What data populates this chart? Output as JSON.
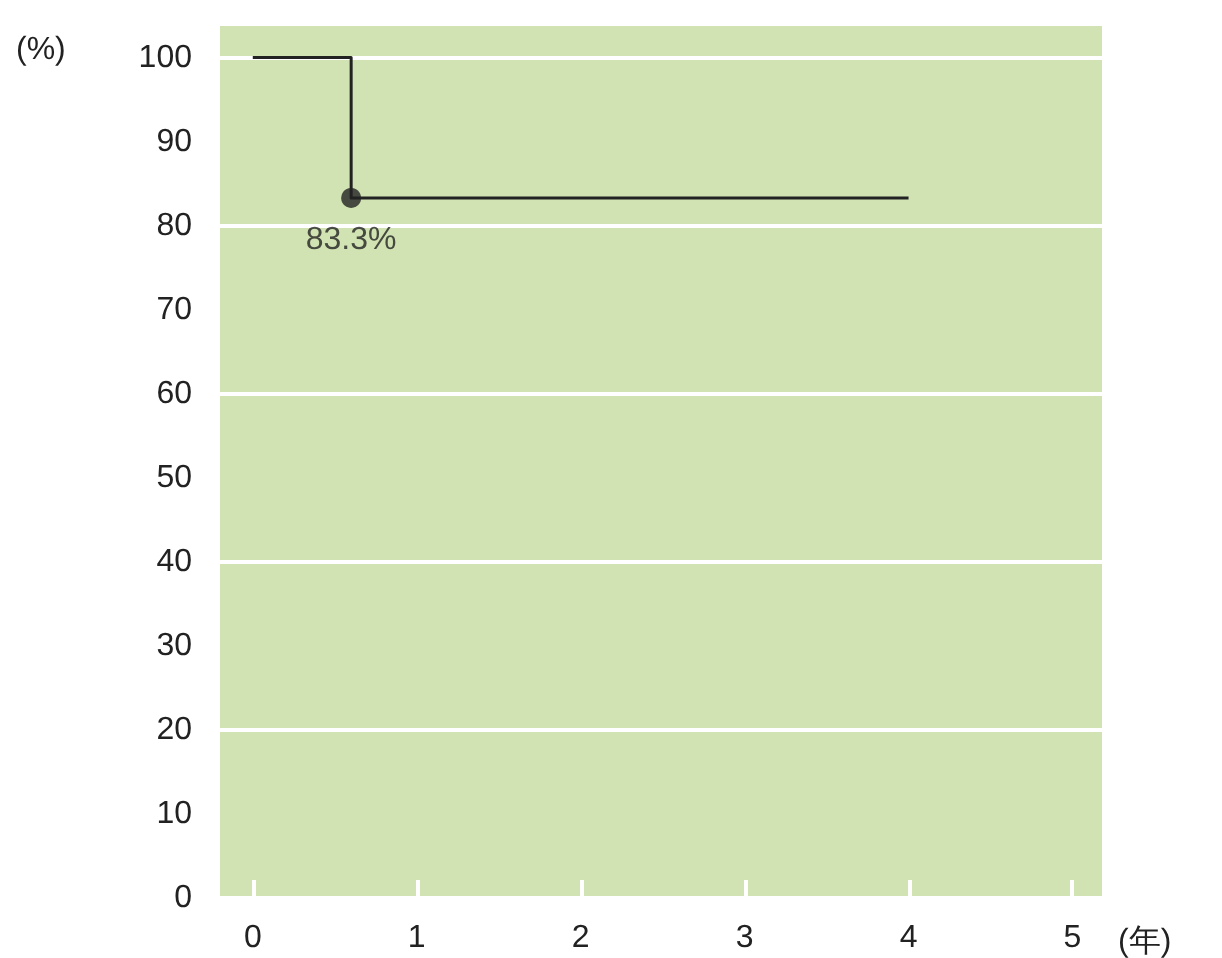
{
  "chart_data": {
    "type": "step",
    "xlabel": "(年)",
    "ylabel": "(%)",
    "xlim": [
      -0.2,
      5.18
    ],
    "xticks": [
      0,
      1,
      2,
      3,
      4,
      5
    ],
    "ylim": [
      0,
      104
    ],
    "yticks": [
      0,
      10,
      20,
      30,
      40,
      50,
      60,
      70,
      80,
      90,
      100
    ],
    "grid": "y",
    "series": [
      {
        "color": "#222222",
        "x": [
          0,
          0.6,
          4
        ],
        "values": [
          100,
          83.3,
          83.3
        ],
        "marker": "none"
      },
      {
        "type": "scatter",
        "color": "#222222",
        "x": [
          0.6
        ],
        "values": [
          83.3
        ],
        "marker": "circle",
        "value_labels": [
          "83.3%"
        ]
      }
    ]
  }
}
